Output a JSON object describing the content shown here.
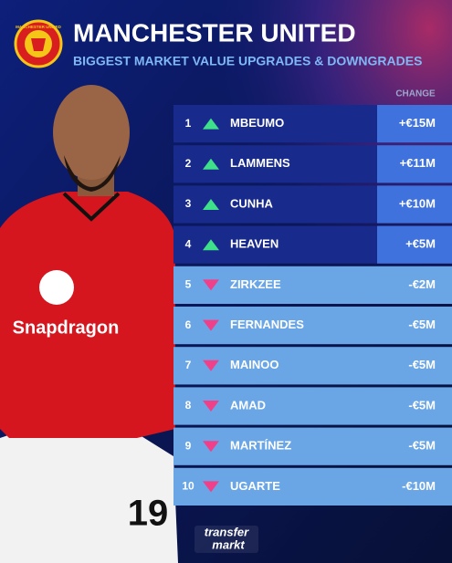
{
  "header": {
    "crest": "MANCHESTER UNITED",
    "title": "MANCHESTER UNITED",
    "subtitle": "BIGGEST MARKET VALUE UPGRADES & DOWNGRADES"
  },
  "table": {
    "column_header": "CHANGE",
    "rows": [
      [
        1,
        "MBEUMO",
        "+€15M"
      ],
      [
        2,
        "LAMMENS",
        "+€11M"
      ],
      [
        3,
        "CUNHA",
        "+€10M"
      ],
      [
        4,
        "HEAVEN",
        "+€5M"
      ],
      [
        5,
        "ZIRKZEE",
        "-€2M"
      ],
      [
        6,
        "FERNANDES",
        "-€5M"
      ],
      [
        7,
        "MAINOO",
        "-€5M"
      ],
      [
        8,
        "AMAD",
        "-€5M"
      ],
      [
        9,
        "MARTÍNEZ",
        "-€5M"
      ],
      [
        10,
        "UGARTE",
        "-€10M"
      ]
    ]
  },
  "player": {
    "sponsor": "Snapdragon",
    "number": "19"
  },
  "footer": {
    "logo_top": "transfer",
    "logo_bottom": "markt"
  }
}
